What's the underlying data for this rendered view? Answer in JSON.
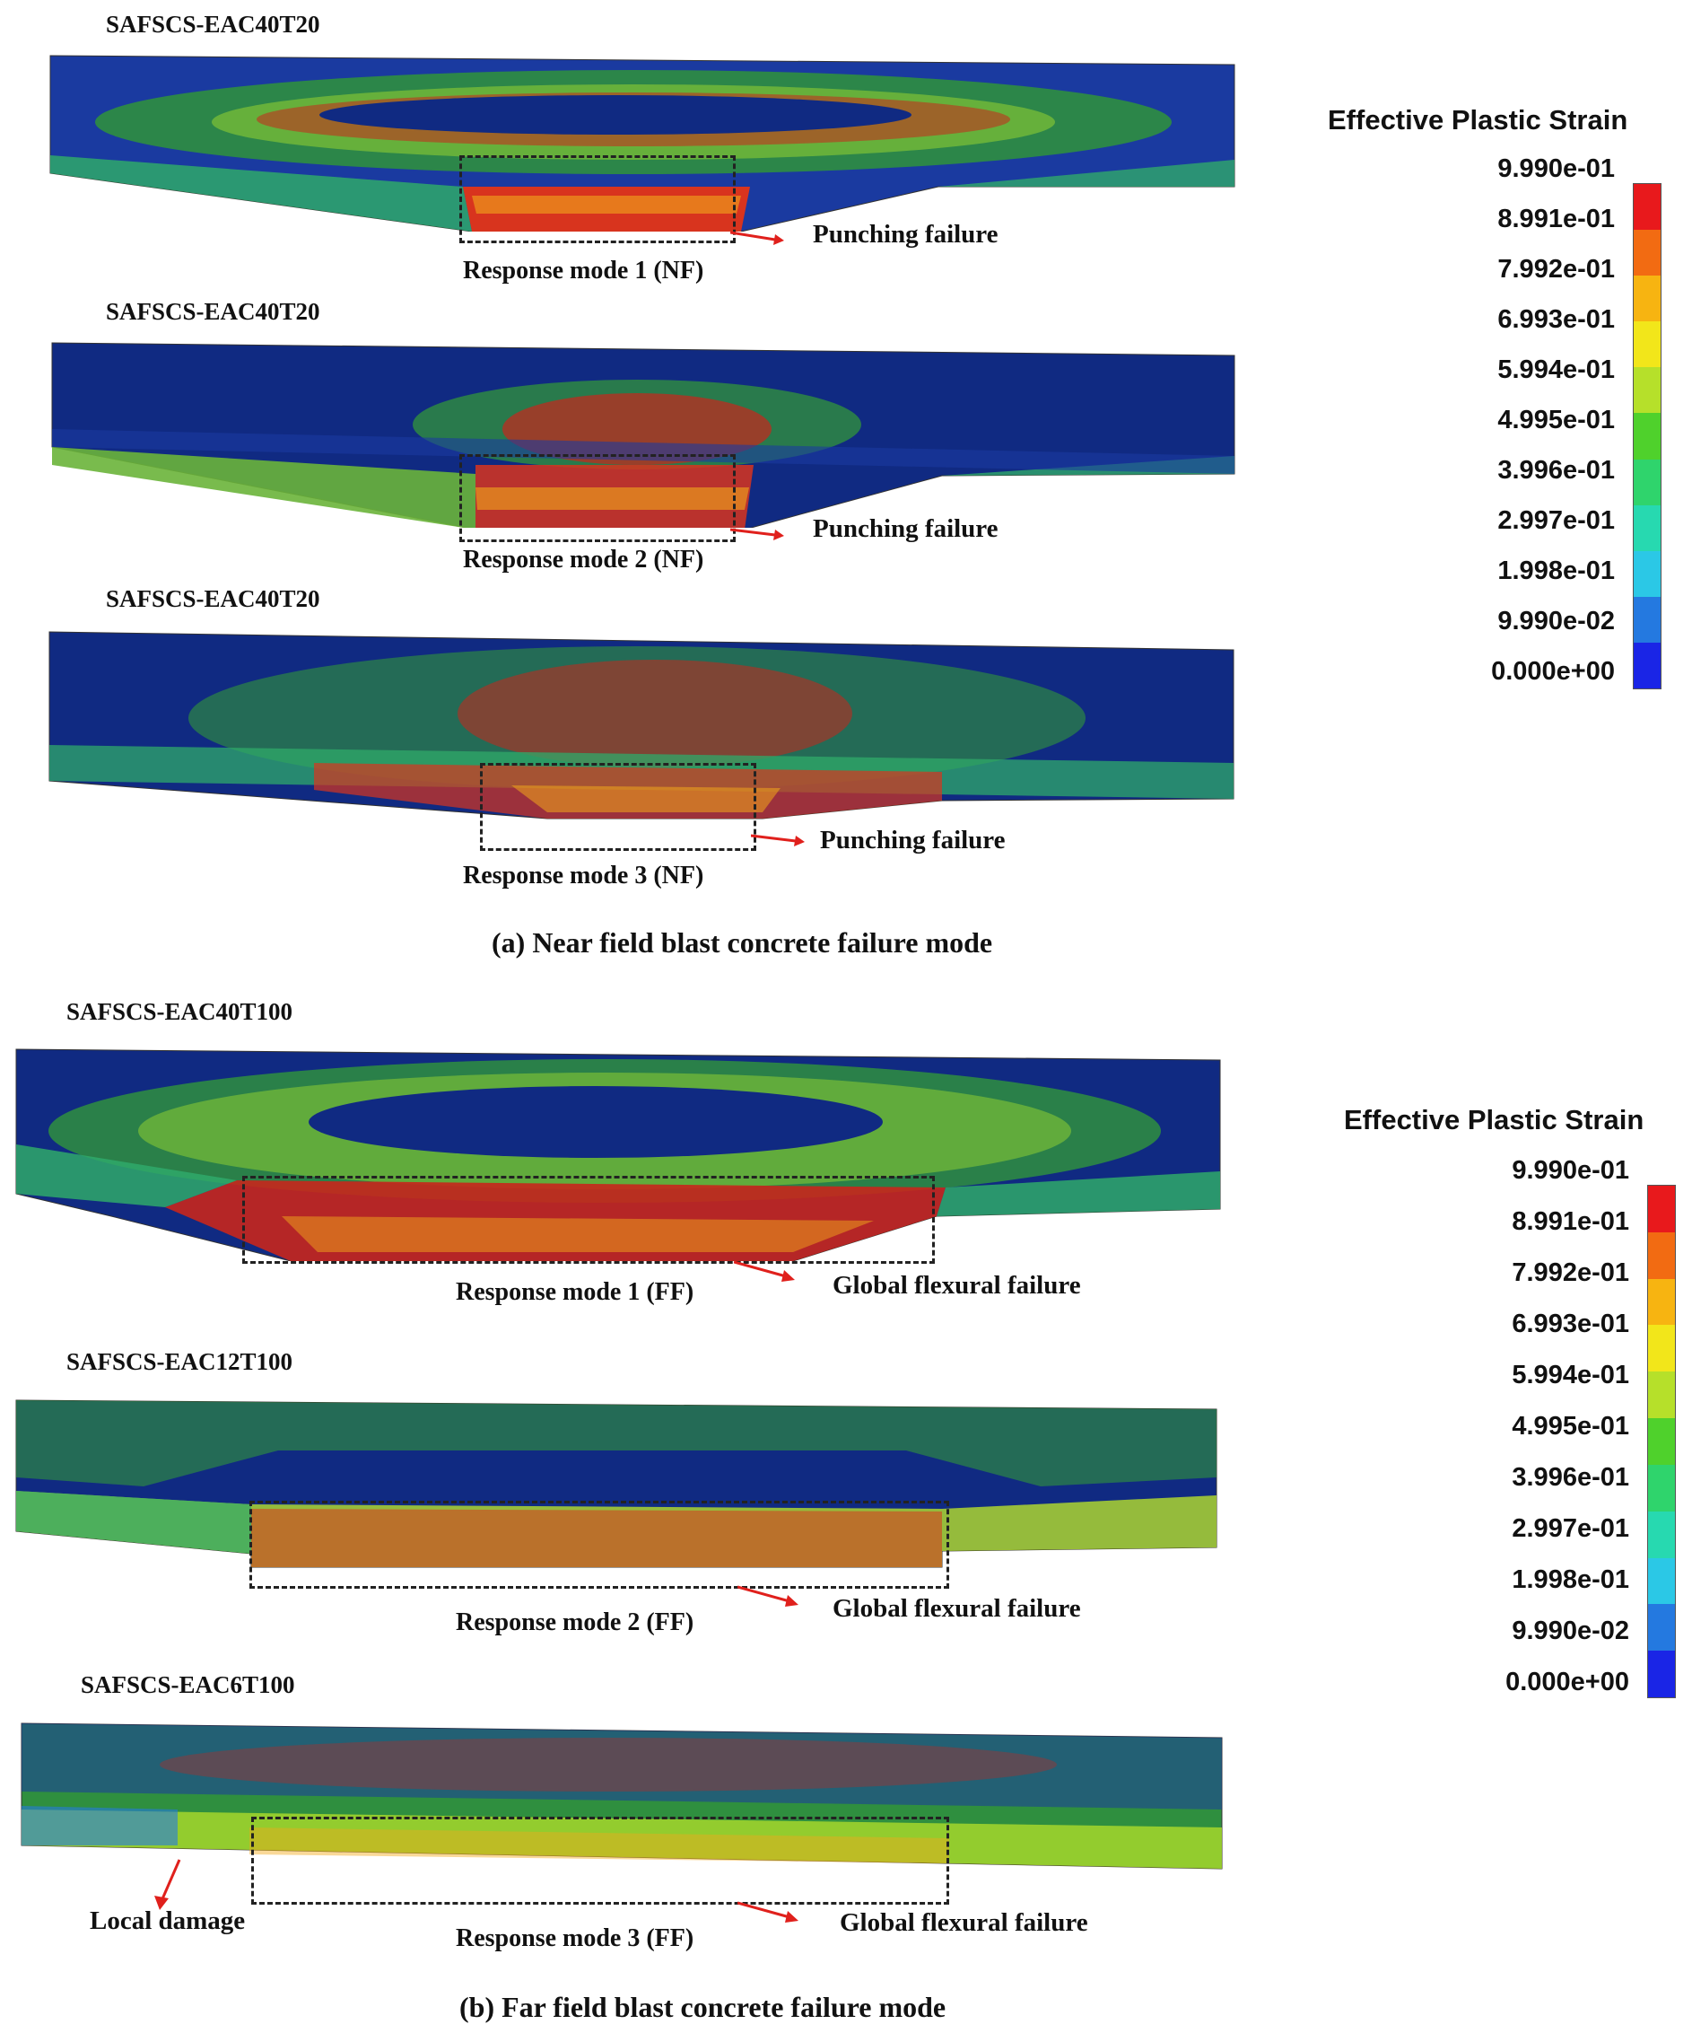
{
  "near_field": {
    "panels": [
      {
        "title": "SAFSCS-EAC40T20",
        "mode": "Response mode 1 (NF)",
        "failure": "Punching failure"
      },
      {
        "title": "SAFSCS-EAC40T20",
        "mode": "Response mode 2 (NF)",
        "failure": "Punching failure"
      },
      {
        "title": "SAFSCS-EAC40T20",
        "mode": "Response mode 3 (NF)",
        "failure": "Punching failure"
      }
    ],
    "caption": "(a) Near field blast concrete failure mode"
  },
  "far_field": {
    "panels": [
      {
        "title": "SAFSCS-EAC40T100",
        "mode": "Response mode 1 (FF)",
        "failure": "Global flexural failure"
      },
      {
        "title": "SAFSCS-EAC12T100",
        "mode": "Response mode 2 (FF)",
        "failure": "Global flexural failure"
      },
      {
        "title": "SAFSCS-EAC6T100",
        "mode": "Response mode 3 (FF)",
        "failure": "Global flexural failure",
        "extra": "Local damage"
      }
    ],
    "caption": "(b) Far field blast concrete failure mode"
  },
  "legend": {
    "title": "Effective Plastic Strain",
    "labels": [
      "9.990e-01",
      "8.991e-01",
      "7.992e-01",
      "6.993e-01",
      "5.994e-01",
      "4.995e-01",
      "3.996e-01",
      "2.997e-01",
      "1.998e-01",
      "9.990e-02",
      "0.000e+00"
    ],
    "colors": [
      "#e8191c",
      "#f26b12",
      "#f7b411",
      "#f2e61a",
      "#b6e02a",
      "#4fd12c",
      "#2fd46c",
      "#27d9b0",
      "#2bc8e6",
      "#2479e0",
      "#1a25e6"
    ]
  },
  "colors": {
    "dark_blue": "#102a82",
    "green": "#2f8f3f",
    "red": "#c8261c",
    "callout": "#e0201c",
    "box_border": "#222222"
  }
}
